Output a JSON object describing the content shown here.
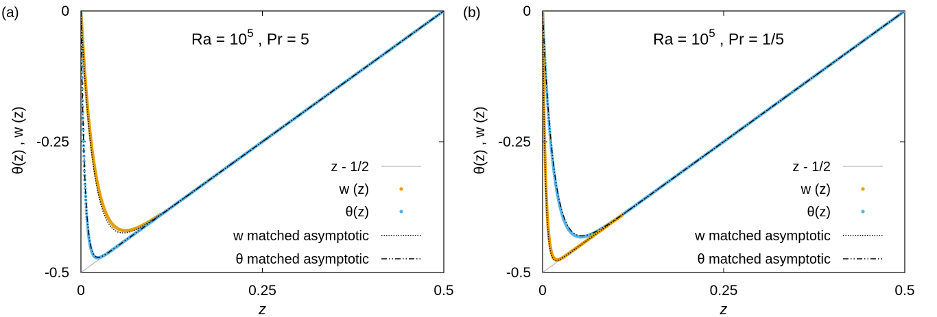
{
  "colors": {
    "w_series": "#E69F00",
    "theta_series": "#56B4E9",
    "reference_line": "#b8b8b8",
    "asymptotic_line": "#000000"
  },
  "chart_data": [
    {
      "type": "scatter",
      "panel_label": "(a)",
      "annotation": {
        "prefix": "Ra = 10",
        "exponent": "5",
        "suffix": " , Pr = 5"
      },
      "xlabel": "z",
      "ylabel": "θ(z) , w (z)",
      "xlim": [
        0,
        0.5
      ],
      "ylim": [
        -0.5,
        0
      ],
      "xticks": [
        0,
        0.25,
        0.5
      ],
      "xtick_labels": [
        "0",
        "0.25",
        "0.5"
      ],
      "yticks": [
        0,
        -0.25,
        -0.5
      ],
      "ytick_labels": [
        "0",
        "-0.25",
        "-0.5"
      ],
      "grid": false,
      "legend_position": "right",
      "params": {
        "theta_min_z": 0.028,
        "theta_min": -0.472,
        "w_min_z": 0.065,
        "w_min": -0.42
      },
      "series": [
        {
          "name": "z - 1/2",
          "style": "line"
        },
        {
          "name": "w (z)",
          "style": "points"
        },
        {
          "name": "θ(z)",
          "style": "points"
        },
        {
          "name": "w matched asymptotic",
          "style": "dotted"
        },
        {
          "name": "θ matched asymptotic",
          "style": "dash-dot"
        }
      ]
    },
    {
      "type": "scatter",
      "panel_label": "(b)",
      "annotation": {
        "prefix": "Ra = 10",
        "exponent": "5",
        "suffix": " , Pr = 1/5"
      },
      "xlabel": "z",
      "ylabel": "θ(z) , w (z)",
      "xlim": [
        0,
        0.5
      ],
      "ylim": [
        -0.5,
        0
      ],
      "xticks": [
        0,
        0.25,
        0.5
      ],
      "xtick_labels": [
        "0",
        "0.25",
        "0.5"
      ],
      "yticks": [
        0,
        -0.25,
        -0.5
      ],
      "ytick_labels": [
        "0",
        "-0.25",
        "-0.5"
      ],
      "grid": false,
      "legend_position": "right",
      "params": {
        "theta_min_z": 0.052,
        "theta_min": -0.432,
        "w_min_z": 0.018,
        "w_min": -0.476
      },
      "series": [
        {
          "name": "z - 1/2",
          "style": "line"
        },
        {
          "name": "w (z)",
          "style": "points"
        },
        {
          "name": "θ(z)",
          "style": "points"
        },
        {
          "name": "w matched asymptotic",
          "style": "dotted"
        },
        {
          "name": "θ matched asymptotic",
          "style": "dash-dot"
        }
      ]
    }
  ]
}
